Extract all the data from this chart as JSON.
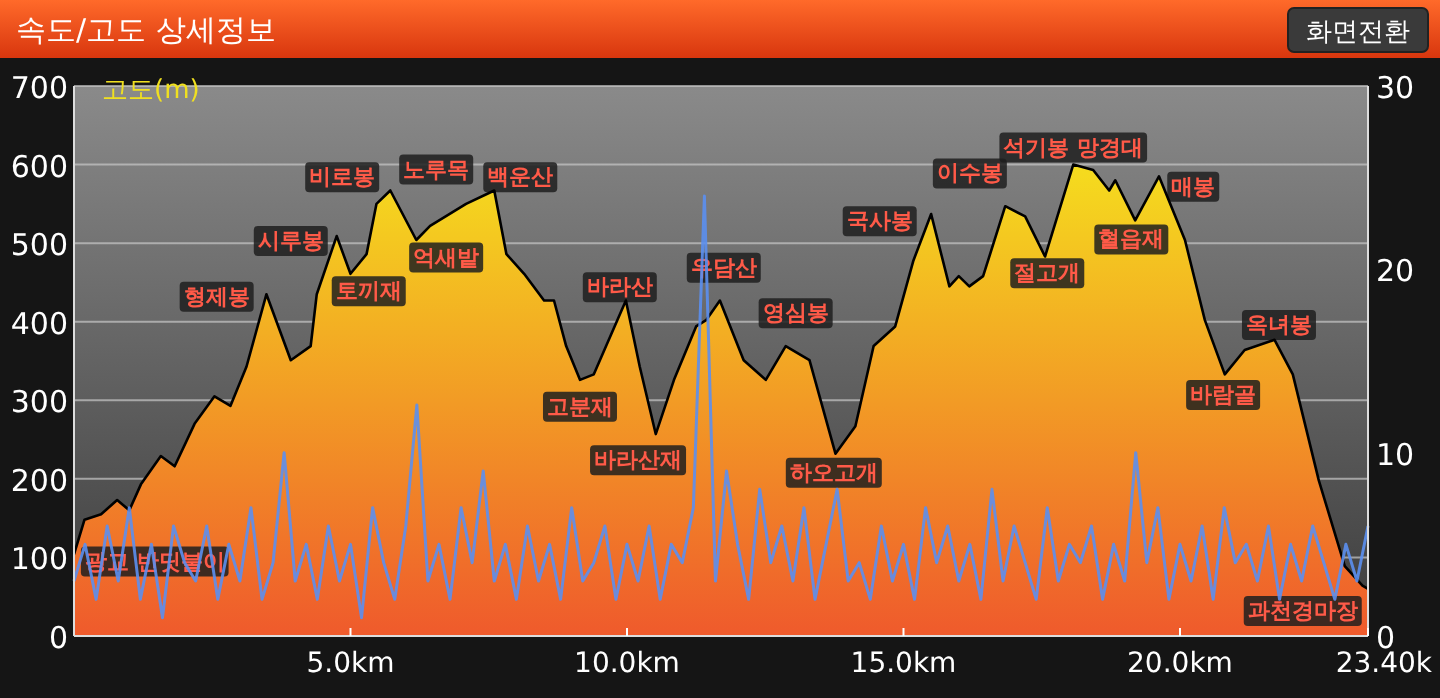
{
  "chart_data": {
    "type": "area",
    "title": "속도/고도 상세정보",
    "ylabel": "고도(m)",
    "xlim": [
      0,
      23.4
    ],
    "xticks": [
      {
        "value": 5,
        "label": "5.0km"
      },
      {
        "value": 10,
        "label": "10.0km"
      },
      {
        "value": 15,
        "label": "15.0km"
      },
      {
        "value": 20,
        "label": "20.0km"
      },
      {
        "value": 23.4,
        "label": "23.40k"
      }
    ],
    "ylim": [
      0,
      700
    ],
    "yticks": [
      0,
      100,
      200,
      300,
      400,
      500,
      600,
      700
    ],
    "y2lim": [
      0,
      30
    ],
    "y2ticks": [
      0,
      10,
      20,
      30
    ],
    "grid": "y",
    "series": [
      {
        "color": "#f5dc1e",
        "x": [
          0,
          0.19,
          0.49,
          0.78,
          1.0,
          1.21,
          1.57,
          1.82,
          2.18,
          2.54,
          2.83,
          3.12,
          3.48,
          3.92,
          4.28,
          4.39,
          4.75,
          5.0,
          5.29,
          5.47,
          5.72,
          6.19,
          6.44,
          7.09,
          7.6,
          7.82,
          8.14,
          8.5,
          8.68,
          8.9,
          9.15,
          9.4,
          9.98,
          10.23,
          10.52,
          10.85,
          11.25,
          11.43,
          11.68,
          12.11,
          12.51,
          12.87,
          13.3,
          13.77,
          14.13,
          14.46,
          14.85,
          15.18,
          15.5,
          15.83,
          16.0,
          16.19,
          16.44,
          16.84,
          17.2,
          17.56,
          18.07,
          18.43,
          18.72,
          18.83,
          19.19,
          19.62,
          20.09,
          20.45,
          20.81,
          21.17,
          21.71,
          22.04,
          22.51,
          22.98,
          23.3,
          23.4
        ],
        "values": [
          104,
          148,
          155,
          173,
          160,
          193,
          229,
          216,
          270,
          305,
          293,
          343,
          435,
          351,
          369,
          435,
          509,
          461,
          486,
          550,
          567,
          504,
          522,
          550,
          567,
          486,
          461,
          427,
          427,
          369,
          326,
          333,
          427,
          343,
          257,
          326,
          394,
          402,
          427,
          351,
          326,
          369,
          351,
          232,
          267,
          369,
          394,
          478,
          537,
          445,
          458,
          445,
          458,
          547,
          534,
          483,
          600,
          593,
          567,
          580,
          529,
          585,
          504,
          402,
          333,
          364,
          377,
          333,
          198,
          89,
          64,
          60
        ]
      },
      {
        "type": "line",
        "color": "#5b8ff0",
        "axis": "y2",
        "x": [
          0,
          0.2,
          0.4,
          0.6,
          0.8,
          1,
          1.2,
          1.4,
          1.6,
          1.8,
          2,
          2.2,
          2.4,
          2.6,
          2.8,
          3,
          3.2,
          3.4,
          3.6,
          3.8,
          4,
          4.2,
          4.4,
          4.6,
          4.8,
          5,
          5.2,
          5.4,
          5.6,
          5.8,
          6,
          6.2,
          6.4,
          6.6,
          6.8,
          7,
          7.2,
          7.4,
          7.6,
          7.8,
          8,
          8.2,
          8.4,
          8.6,
          8.8,
          9,
          9.2,
          9.4,
          9.6,
          9.8,
          10,
          10.2,
          10.4,
          10.6,
          10.8,
          11,
          11.2,
          11.4,
          11.6,
          11.8,
          12,
          12.2,
          12.4,
          12.6,
          12.8,
          13,
          13.2,
          13.4,
          13.6,
          13.8,
          14,
          14.2,
          14.4,
          14.6,
          14.8,
          15,
          15.2,
          15.4,
          15.6,
          15.8,
          16,
          16.2,
          16.4,
          16.6,
          16.8,
          17,
          17.2,
          17.4,
          17.6,
          17.8,
          18,
          18.2,
          18.4,
          18.6,
          18.8,
          19,
          19.2,
          19.4,
          19.6,
          19.8,
          20,
          20.2,
          20.4,
          20.6,
          20.8,
          21,
          21.2,
          21.4,
          21.6,
          21.8,
          22,
          22.2,
          22.4,
          22.6,
          22.8,
          23,
          23.2,
          23.4
        ],
        "values": [
          3,
          5,
          2,
          6,
          3,
          7,
          2,
          5,
          1,
          6,
          4,
          3,
          6,
          2,
          5,
          3,
          7,
          2,
          4,
          10,
          3,
          5,
          2,
          6,
          3,
          5,
          1,
          7,
          4,
          2,
          6,
          12.6,
          3,
          5,
          2,
          7,
          4,
          9,
          3,
          5,
          2,
          6,
          3,
          5,
          2,
          7,
          3,
          4,
          6,
          2,
          5,
          3,
          6,
          2,
          5,
          4,
          7,
          24,
          3,
          9,
          5,
          2,
          8,
          4,
          6,
          3,
          7,
          2,
          5,
          8,
          3,
          4,
          2,
          6,
          3,
          5,
          2,
          7,
          4,
          6,
          3,
          5,
          2,
          8,
          3,
          6,
          4,
          2,
          7,
          3,
          5,
          4,
          6,
          2,
          5,
          3,
          10,
          4,
          7,
          2,
          5,
          3,
          6,
          2,
          7,
          4,
          5,
          3,
          6,
          2,
          5,
          3,
          6,
          4,
          2,
          5,
          3,
          6
        ]
      }
    ],
    "annotations": [
      "화면전환",
      "광교 반딧불이",
      "형제봉",
      "시루봉",
      "비로봉",
      "노루목",
      "백운산",
      "토끼재",
      "억새밭",
      "바라산",
      "우담산",
      "고분재",
      "바라산재",
      "영심봉",
      "하오고개",
      "국사봉",
      "이수봉",
      "석기봉 망경대",
      "매봉",
      "절고개",
      "혈읍재",
      "옥녀봉",
      "바람골",
      "과천경마장"
    ]
  }
}
